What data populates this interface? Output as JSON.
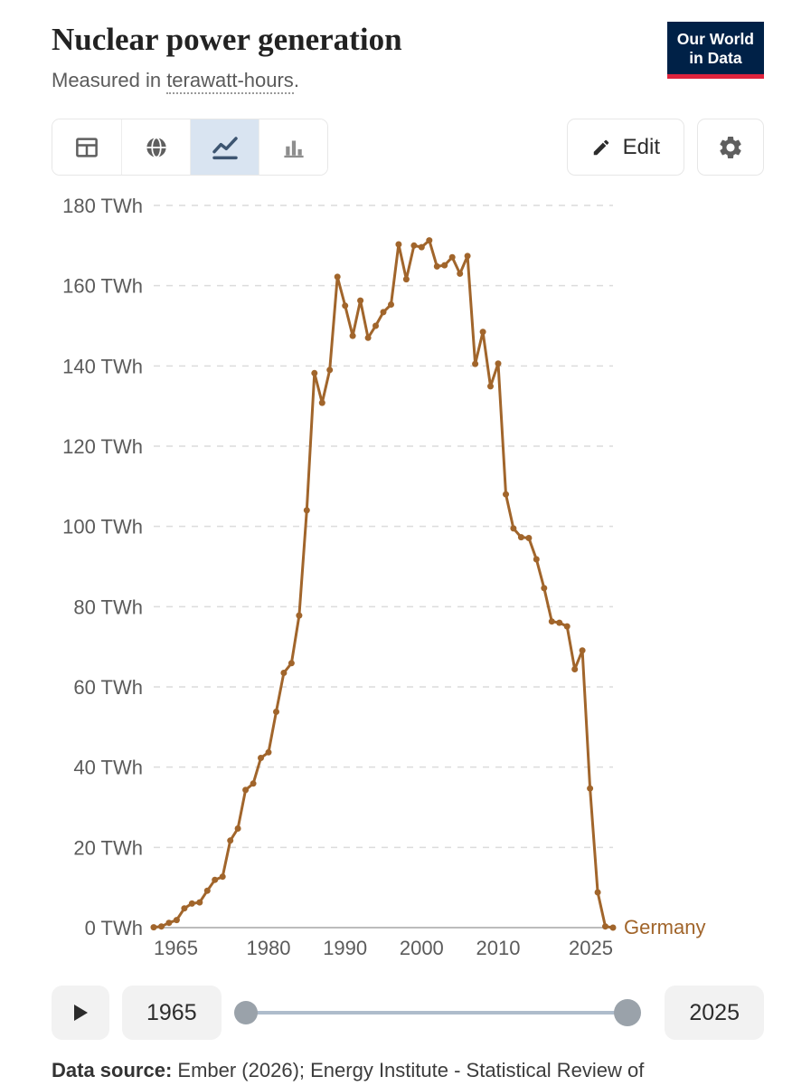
{
  "header": {
    "title": "Nuclear power generation",
    "subtitle_prefix": "Measured in ",
    "subtitle_term": "terawatt-hours",
    "subtitle_suffix": ".",
    "logo_line1": "Our World",
    "logo_line2": "in Data"
  },
  "theme": {
    "logo_bg": "#002147",
    "logo_accent": "#e0233c",
    "active_view_bg": "#d9e4f1"
  },
  "toolbar": {
    "views": [
      {
        "icon": "table-icon",
        "active": false
      },
      {
        "icon": "globe-icon",
        "active": false
      },
      {
        "icon": "line-chart-icon",
        "active": true
      },
      {
        "icon": "bar-chart-icon",
        "active": false
      }
    ],
    "edit_label": "Edit",
    "settings_icon": "gear-icon"
  },
  "chart_data": {
    "type": "line",
    "title": "Nuclear power generation",
    "subtitle": "Measured in terawatt-hours.",
    "xlabel": "",
    "ylabel": "",
    "unit": "TWh",
    "ylim": [
      0,
      180
    ],
    "yticks": [
      0,
      20,
      40,
      60,
      80,
      100,
      120,
      140,
      160,
      180
    ],
    "ytick_suffix": " TWh",
    "xticks": [
      1965,
      1980,
      1990,
      2000,
      2010,
      2025
    ],
    "grid": "dashed-horizontal",
    "legend": "entity-label-at-line-end",
    "years": [
      1965,
      1966,
      1967,
      1968,
      1969,
      1970,
      1971,
      1972,
      1973,
      1974,
      1975,
      1976,
      1977,
      1978,
      1979,
      1980,
      1981,
      1982,
      1983,
      1984,
      1985,
      1986,
      1987,
      1988,
      1989,
      1990,
      1991,
      1992,
      1993,
      1994,
      1995,
      1996,
      1997,
      1998,
      1999,
      2000,
      2001,
      2002,
      2003,
      2004,
      2005,
      2006,
      2007,
      2008,
      2009,
      2010,
      2011,
      2012,
      2013,
      2014,
      2015,
      2016,
      2017,
      2018,
      2019,
      2020,
      2021,
      2022,
      2023,
      2024,
      2025
    ],
    "series": [
      {
        "name": "Germany",
        "color": "#A1652B",
        "values": [
          0.1,
          0.3,
          1.2,
          1.9,
          4.8,
          6.0,
          6.3,
          9.2,
          11.9,
          12.7,
          21.7,
          24.7,
          34.3,
          35.9,
          42.3,
          43.7,
          53.8,
          63.5,
          65.9,
          77.8,
          104.0,
          138.2,
          130.8,
          139.0,
          162.2,
          155.0,
          147.5,
          156.3,
          147.0,
          150.0,
          153.4,
          155.3,
          170.3,
          161.6,
          170.0,
          169.6,
          171.3,
          164.8,
          165.1,
          167.1,
          163.0,
          167.4,
          140.5,
          148.5,
          134.9,
          140.6,
          108.0,
          99.5,
          97.3,
          97.1,
          91.8,
          84.6,
          76.3,
          76.0,
          75.1,
          64.4,
          69.1,
          34.7,
          8.8,
          0.3,
          0.0
        ]
      }
    ]
  },
  "timeline": {
    "start_year": "1965",
    "end_year": "2025"
  },
  "footer": {
    "label": "Data source:",
    "text": " Ember (2026); Energy Institute - Statistical Review of"
  }
}
